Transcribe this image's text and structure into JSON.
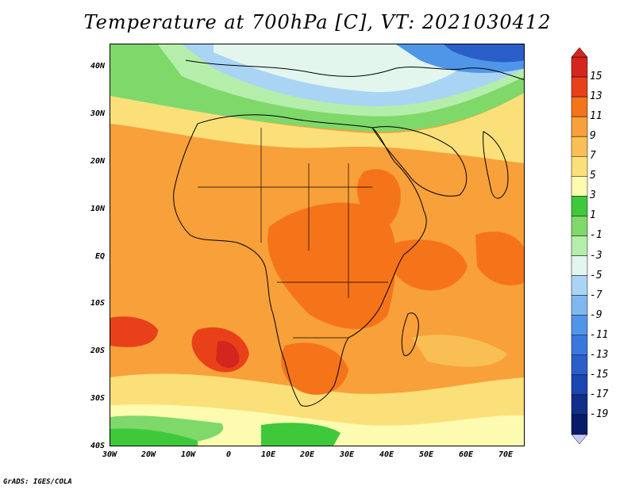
{
  "title": "Temperature at 700hPa [C], VT: 2021030412",
  "credit": "GrADS: IGES/COLA",
  "lat_labels": [
    "40N",
    "30N",
    "20N",
    "10N",
    "EQ",
    "10S",
    "20S",
    "30S",
    "40S"
  ],
  "lon_labels": [
    "30W",
    "20W",
    "10W",
    "0",
    "10E",
    "20E",
    "30E",
    "40E",
    "50E",
    "60E",
    "70E"
  ],
  "colorbar": {
    "labels": [
      "15",
      "13",
      "11",
      "9",
      "7",
      "5",
      "3",
      "1",
      "-1",
      "-3",
      "-5",
      "-7",
      "-9",
      "-11",
      "-13",
      "-15",
      "-17",
      "-19"
    ],
    "colors": [
      "#d4261e",
      "#e8411a",
      "#f5741a",
      "#f8a03a",
      "#f9bf55",
      "#fbe07a",
      "#fdfbb0",
      "#3ec93a",
      "#7ed86a",
      "#b5eeaa",
      "#e2f6ee",
      "#aad4f4",
      "#7fb8ee",
      "#5096e8",
      "#3a78de",
      "#2a5ec8",
      "#1a46b0",
      "#102e8a",
      "#0a1a6a"
    ]
  },
  "map_colors": {
    "deep_orange": "#f5741a",
    "orange": "#f8a03a",
    "light_orange": "#f9bf55",
    "yellow": "#fbe07a",
    "pale_yellow": "#fdfbb0",
    "green": "#3ec93a",
    "light_green": "#7ed86a",
    "pale_green": "#b5eeaa",
    "pale_blue": "#e2f6ee",
    "light_blue": "#aad4f4",
    "blue": "#5096e8",
    "dark_blue": "#2a5ec8",
    "red": "#e8411a",
    "dark_red": "#d4261e"
  }
}
